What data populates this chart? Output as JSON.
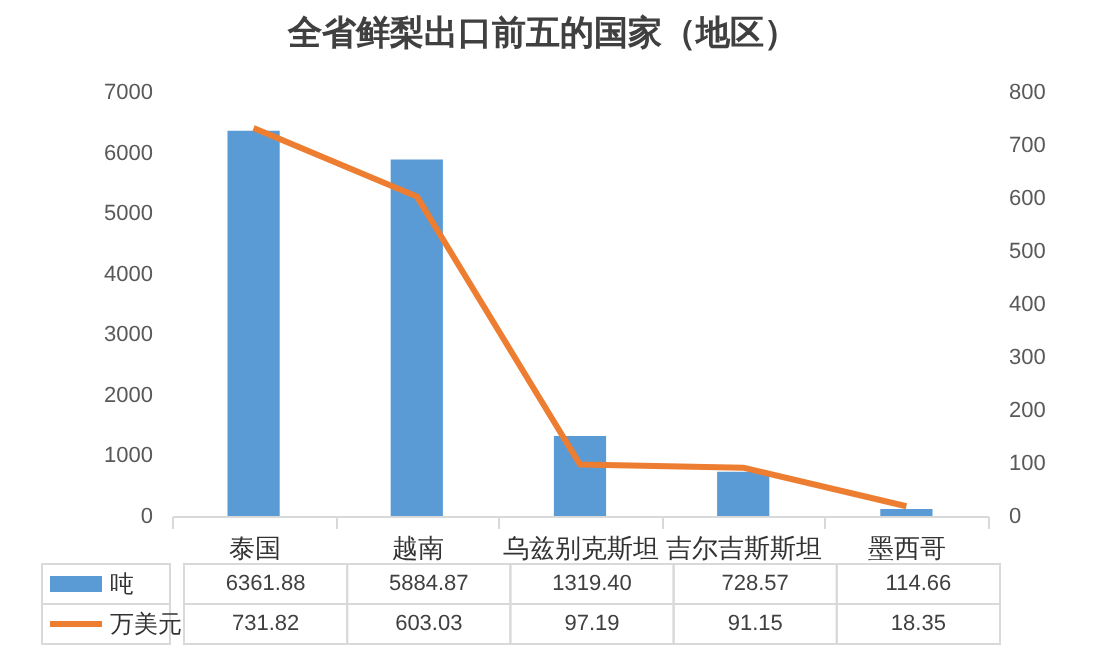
{
  "chart_data": {
    "type": "bar",
    "title": "全省鲜梨出口前五的国家（地区）",
    "categories": [
      "泰国",
      "越南",
      "乌兹别克斯坦",
      "吉尔吉斯斯坦",
      "墨西哥"
    ],
    "series": [
      {
        "name": "吨",
        "color": "#5b9bd5",
        "values": [
          6361.88,
          5884.87,
          1319.4,
          728.57,
          114.66
        ],
        "value_labels": [
          "6361.88",
          "5884.87",
          "1319.40",
          "728.57",
          "114.66"
        ]
      },
      {
        "name": "万美元",
        "type": "line",
        "axis": "y2",
        "color": "#ed7d31",
        "values": [
          731.82,
          603.03,
          97.19,
          91.15,
          18.35
        ],
        "value_labels": [
          "731.82",
          "603.03",
          "97.19",
          "91.15",
          "18.35"
        ]
      }
    ],
    "ylim": [
      0,
      7000
    ],
    "yticks": [
      0,
      1000,
      2000,
      3000,
      4000,
      5000,
      6000,
      7000
    ],
    "y2lim": [
      0,
      800
    ],
    "y2ticks": [
      0,
      100,
      200,
      300,
      400,
      500,
      600,
      700,
      800
    ],
    "legend": "bottom",
    "marker": "none",
    "line_style": "solid"
  }
}
